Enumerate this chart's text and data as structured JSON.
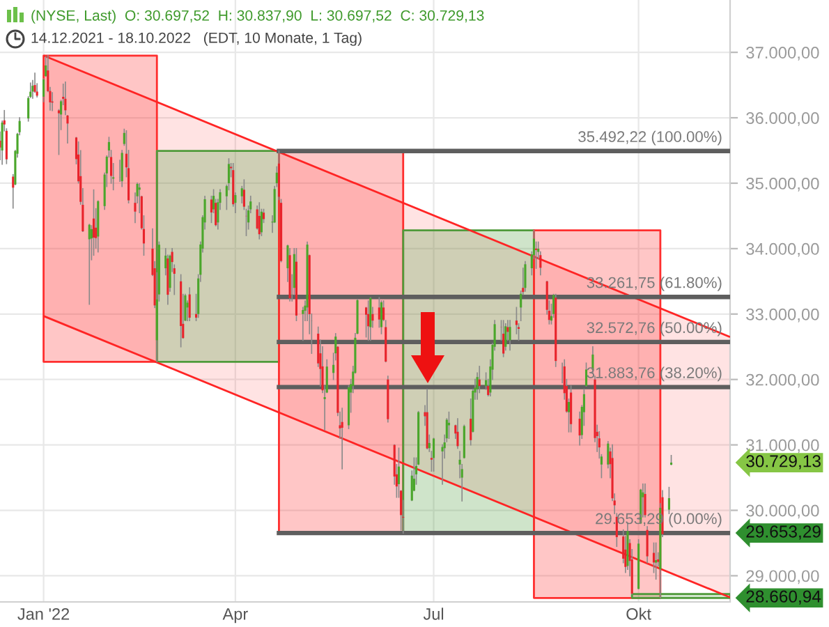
{
  "chart_data": {
    "type": "candlestick",
    "title": "(NYSE, Last)  O: 30.697,52  H: 30.837,90  L: 30.697,52  C: 30.729,13",
    "subtitle": "14.12.2021 - 18.10.2022   (EDT, 10 Monate, 1 Tag)",
    "x": [
      "2021-12-14",
      "2021-12-15",
      "2021-12-16",
      "2021-12-17",
      "2021-12-20",
      "2021-12-21",
      "2021-12-22",
      "2021-12-23",
      "2021-12-27",
      "2021-12-28",
      "2021-12-29",
      "2021-12-30",
      "2021-12-31",
      "2022-01-03",
      "2022-01-04",
      "2022-01-05",
      "2022-01-06",
      "2022-01-07",
      "2022-01-10",
      "2022-01-11",
      "2022-01-12",
      "2022-01-13",
      "2022-01-14",
      "2022-01-18",
      "2022-01-19",
      "2022-01-20",
      "2022-01-21",
      "2022-01-24",
      "2022-01-25",
      "2022-01-26",
      "2022-01-27",
      "2022-01-28",
      "2022-01-31",
      "2022-02-01",
      "2022-02-02",
      "2022-02-03",
      "2022-02-04",
      "2022-02-07",
      "2022-02-08",
      "2022-02-09",
      "2022-02-10",
      "2022-02-11",
      "2022-02-14",
      "2022-02-15",
      "2022-02-16",
      "2022-02-17",
      "2022-02-18",
      "2022-02-22",
      "2022-02-23",
      "2022-02-24",
      "2022-02-25",
      "2022-02-28",
      "2022-03-01",
      "2022-03-02",
      "2022-03-03",
      "2022-03-04",
      "2022-03-07",
      "2022-03-08",
      "2022-03-09",
      "2022-03-10",
      "2022-03-11",
      "2022-03-14",
      "2022-03-15",
      "2022-03-16",
      "2022-03-17",
      "2022-03-18",
      "2022-03-21",
      "2022-03-22",
      "2022-03-23",
      "2022-03-24",
      "2022-03-25",
      "2022-03-28",
      "2022-03-29",
      "2022-03-30",
      "2022-03-31",
      "2022-04-01",
      "2022-04-04",
      "2022-04-05",
      "2022-04-06",
      "2022-04-07",
      "2022-04-08",
      "2022-04-11",
      "2022-04-12",
      "2022-04-13",
      "2022-04-14",
      "2022-04-18",
      "2022-04-19",
      "2022-04-20",
      "2022-04-21",
      "2022-04-22",
      "2022-04-25",
      "2022-04-26",
      "2022-04-27",
      "2022-04-28",
      "2022-04-29",
      "2022-05-02",
      "2022-05-03",
      "2022-05-04",
      "2022-05-05",
      "2022-05-06",
      "2022-05-09",
      "2022-05-10",
      "2022-05-11",
      "2022-05-12",
      "2022-05-13",
      "2022-05-16",
      "2022-05-17",
      "2022-05-18",
      "2022-05-19",
      "2022-05-20",
      "2022-05-23",
      "2022-05-24",
      "2022-05-25",
      "2022-05-26",
      "2022-05-27",
      "2022-05-31",
      "2022-06-01",
      "2022-06-02",
      "2022-06-03",
      "2022-06-06",
      "2022-06-07",
      "2022-06-08",
      "2022-06-09",
      "2022-06-10",
      "2022-06-13",
      "2022-06-14",
      "2022-06-15",
      "2022-06-16",
      "2022-06-17",
      "2022-06-21",
      "2022-06-22",
      "2022-06-23",
      "2022-06-24",
      "2022-06-27",
      "2022-06-28",
      "2022-06-29",
      "2022-06-30",
      "2022-07-01",
      "2022-07-05",
      "2022-07-06",
      "2022-07-07",
      "2022-07-08",
      "2022-07-11",
      "2022-07-12",
      "2022-07-13",
      "2022-07-14",
      "2022-07-15",
      "2022-07-18",
      "2022-07-19",
      "2022-07-20",
      "2022-07-21",
      "2022-07-22",
      "2022-07-25",
      "2022-07-26",
      "2022-07-27",
      "2022-07-28",
      "2022-07-29",
      "2022-08-01",
      "2022-08-02",
      "2022-08-03",
      "2022-08-04",
      "2022-08-05",
      "2022-08-08",
      "2022-08-09",
      "2022-08-10",
      "2022-08-11",
      "2022-08-12",
      "2022-08-15",
      "2022-08-16",
      "2022-08-17",
      "2022-08-18",
      "2022-08-19",
      "2022-08-22",
      "2022-08-23",
      "2022-08-24",
      "2022-08-25",
      "2022-08-26",
      "2022-08-29",
      "2022-08-30",
      "2022-08-31",
      "2022-09-01",
      "2022-09-02",
      "2022-09-06",
      "2022-09-07",
      "2022-09-08",
      "2022-09-09",
      "2022-09-12",
      "2022-09-13",
      "2022-09-14",
      "2022-09-15",
      "2022-09-16",
      "2022-09-19",
      "2022-09-20",
      "2022-09-21",
      "2022-09-22",
      "2022-09-23",
      "2022-09-26",
      "2022-09-27",
      "2022-09-28",
      "2022-09-29",
      "2022-09-30",
      "2022-10-03",
      "2022-10-04",
      "2022-10-05",
      "2022-10-06",
      "2022-10-07",
      "2022-10-10",
      "2022-10-11",
      "2022-10-12",
      "2022-10-13",
      "2022-10-14",
      "2022-10-17",
      "2022-10-18"
    ],
    "ohlc": [
      [
        35650,
        35780,
        35360,
        35544
      ],
      [
        35500,
        35950,
        35290,
        35927
      ],
      [
        35960,
        36110,
        35800,
        35898
      ],
      [
        35800,
        35830,
        35300,
        35365
      ],
      [
        35100,
        35130,
        34620,
        34932
      ],
      [
        34980,
        35500,
        34980,
        35493
      ],
      [
        35450,
        35760,
        35400,
        35754
      ],
      [
        35780,
        36000,
        35740,
        35951
      ],
      [
        35990,
        36320,
        35950,
        36302
      ],
      [
        36320,
        36530,
        36310,
        36398
      ],
      [
        36400,
        36570,
        36300,
        36489
      ],
      [
        36500,
        36680,
        36390,
        36398
      ],
      [
        36400,
        36520,
        36320,
        36338
      ],
      [
        36322,
        36596,
        36246,
        36585
      ],
      [
        36636,
        36935,
        36636,
        36800
      ],
      [
        36723,
        36950,
        36400,
        36407
      ],
      [
        36409,
        36464,
        36118,
        36236
      ],
      [
        36249,
        36382,
        36111,
        36232
      ],
      [
        36113,
        36123,
        35440,
        36069
      ],
      [
        36050,
        36266,
        35820,
        36252
      ],
      [
        36320,
        36513,
        36201,
        36290
      ],
      [
        36290,
        36544,
        36048,
        36114
      ],
      [
        36034,
        36034,
        35616,
        35912
      ],
      [
        35698,
        35698,
        35297,
        35368
      ],
      [
        35438,
        35629,
        35004,
        35029
      ],
      [
        35108,
        35497,
        34680,
        34715
      ],
      [
        34669,
        34917,
        34264,
        34265
      ],
      [
        34143,
        34370,
        33150,
        34365
      ],
      [
        34155,
        34350,
        33830,
        34298
      ],
      [
        34460,
        34897,
        33900,
        34168
      ],
      [
        34320,
        34610,
        34009,
        34161
      ],
      [
        34185,
        34729,
        33950,
        34725
      ],
      [
        34650,
        35152,
        34600,
        35132
      ],
      [
        35150,
        35417,
        34950,
        35405
      ],
      [
        35500,
        35700,
        35400,
        35629
      ],
      [
        35400,
        35500,
        35000,
        35111
      ],
      [
        35070,
        35300,
        34900,
        35090
      ],
      [
        35090,
        35350,
        35030,
        35091
      ],
      [
        35030,
        35500,
        34950,
        35463
      ],
      [
        35600,
        35824,
        35580,
        35768
      ],
      [
        35450,
        35800,
        35100,
        35242
      ],
      [
        35230,
        35500,
        34700,
        34738
      ],
      [
        34700,
        34850,
        34400,
        34566
      ],
      [
        34800,
        35000,
        34700,
        34989
      ],
      [
        34900,
        34990,
        34550,
        34934
      ],
      [
        34800,
        34800,
        34300,
        34312
      ],
      [
        34300,
        34500,
        33900,
        34079
      ],
      [
        34000,
        34300,
        33590,
        33597
      ],
      [
        33700,
        33800,
        33100,
        33132
      ],
      [
        32600,
        33630,
        32270,
        33224
      ],
      [
        33300,
        34100,
        33200,
        34059
      ],
      [
        33700,
        34000,
        33600,
        33893
      ],
      [
        33850,
        33900,
        33150,
        33295
      ],
      [
        33400,
        33900,
        33350,
        33891
      ],
      [
        33950,
        34000,
        33650,
        33795
      ],
      [
        33700,
        33750,
        33300,
        33615
      ],
      [
        33500,
        33600,
        32500,
        32817
      ],
      [
        32850,
        33300,
        32632,
        32633
      ],
      [
        32900,
        33300,
        32900,
        33286
      ],
      [
        33100,
        33200,
        32900,
        33174
      ],
      [
        33300,
        33400,
        32900,
        32944
      ],
      [
        33000,
        33300,
        32900,
        32945
      ],
      [
        33000,
        33600,
        32950,
        33544
      ],
      [
        33600,
        34100,
        33500,
        34063
      ],
      [
        34000,
        34500,
        33950,
        34481
      ],
      [
        34400,
        34800,
        34300,
        34755
      ],
      [
        34750,
        34800,
        34400,
        34553
      ],
      [
        34600,
        34900,
        34550,
        34807
      ],
      [
        34700,
        34750,
        34350,
        34359
      ],
      [
        34400,
        34750,
        34300,
        34708
      ],
      [
        34700,
        34900,
        34600,
        34861
      ],
      [
        34800,
        34970,
        34600,
        34956
      ],
      [
        35000,
        35372,
        34900,
        35294
      ],
      [
        35250,
        35300,
        35100,
        35229
      ],
      [
        35200,
        35300,
        34650,
        34678
      ],
      [
        34700,
        34850,
        34550,
        34818
      ],
      [
        34800,
        34950,
        34700,
        34922
      ],
      [
        34900,
        35050,
        34600,
        34641
      ],
      [
        34500,
        34600,
        34200,
        34497
      ],
      [
        34400,
        34650,
        34300,
        34584
      ],
      [
        34600,
        34800,
        34550,
        34721
      ],
      [
        34600,
        34650,
        34300,
        34308
      ],
      [
        34500,
        34700,
        34150,
        34220
      ],
      [
        34250,
        34600,
        34200,
        34565
      ],
      [
        34550,
        34600,
        34400,
        34451
      ],
      [
        34400,
        34500,
        34250,
        34412
      ],
      [
        34400,
        34950,
        34400,
        34911
      ],
      [
        35000,
        35250,
        34950,
        35161
      ],
      [
        35300,
        35492.22,
        34750,
        34793
      ],
      [
        34700,
        34750,
        33800,
        33811
      ],
      [
        33700,
        34050,
        33500,
        34049
      ],
      [
        33900,
        34000,
        33200,
        33240
      ],
      [
        33300,
        33600,
        33200,
        33302
      ],
      [
        33400,
        34000,
        33300,
        33916
      ],
      [
        33800,
        34000,
        32900,
        32977
      ],
      [
        33000,
        33100,
        32600,
        33062
      ],
      [
        33050,
        33200,
        32900,
        33129
      ],
      [
        33100,
        34100,
        32900,
        34061
      ],
      [
        33900,
        33900,
        32700,
        32998
      ],
      [
        32900,
        33000,
        32400,
        32899
      ],
      [
        32700,
        32800,
        32200,
        32246
      ],
      [
        32400,
        32600,
        31900,
        32161
      ],
      [
        32200,
        32500,
        31800,
        31834
      ],
      [
        31700,
        31900,
        31230,
        31730
      ],
      [
        31800,
        32300,
        31800,
        32197
      ],
      [
        32100,
        32400,
        32000,
        32223
      ],
      [
        32400,
        32700,
        32300,
        32655
      ],
      [
        32500,
        32500,
        31450,
        31490
      ],
      [
        31300,
        31500,
        31100,
        31253
      ],
      [
        31350,
        31560,
        30636,
        31262
      ],
      [
        31300,
        31900,
        31250,
        31880
      ],
      [
        31800,
        32000,
        31500,
        31929
      ],
      [
        31900,
        32200,
        31800,
        32120
      ],
      [
        32100,
        32700,
        32100,
        32637
      ],
      [
        32700,
        33220,
        32700,
        33213
      ],
      [
        33100,
        33100,
        32650,
        32990
      ],
      [
        33000,
        33200,
        32600,
        32813
      ],
      [
        32800,
        33250,
        32600,
        33248
      ],
      [
        33000,
        33100,
        32800,
        32900
      ],
      [
        33100,
        33250,
        32800,
        32916
      ],
      [
        32800,
        33200,
        32700,
        33180
      ],
      [
        33100,
        33200,
        32900,
        32911
      ],
      [
        32800,
        32900,
        32270,
        32273
      ],
      [
        32000,
        32050,
        31350,
        31393
      ],
      [
        31000,
        31000,
        30400,
        30517
      ],
      [
        30550,
        30700,
        30200,
        30365
      ],
      [
        30400,
        30950,
        30200,
        30669
      ],
      [
        30300,
        30300,
        29700,
        29927
      ],
      [
        29900,
        30150,
        29653.29,
        29889
      ],
      [
        30150,
        30600,
        30150,
        30530
      ],
      [
        30300,
        30800,
        30300,
        30483
      ],
      [
        30550,
        30800,
        30400,
        30677
      ],
      [
        30700,
        31510,
        30700,
        31501
      ],
      [
        31500,
        31600,
        31300,
        31438
      ],
      [
        31500,
        31850,
        30940,
        30947
      ],
      [
        30950,
        31150,
        30900,
        31029
      ],
      [
        30800,
        30900,
        30600,
        30775
      ],
      [
        30800,
        31100,
        30600,
        31097
      ],
      [
        30900,
        31000,
        30400,
        30968
      ],
      [
        30950,
        31150,
        30800,
        31038
      ],
      [
        31100,
        31400,
        31050,
        31385
      ],
      [
        31300,
        31500,
        31100,
        31338
      ],
      [
        31300,
        31300,
        31100,
        31174
      ],
      [
        31200,
        31400,
        30950,
        30981
      ],
      [
        30700,
        30900,
        30500,
        30773
      ],
      [
        30500,
        30700,
        30144,
        30630
      ],
      [
        30800,
        31300,
        30800,
        31288
      ],
      [
        31400,
        31700,
        31000,
        31073
      ],
      [
        31200,
        31850,
        31200,
        31827
      ],
      [
        31800,
        32000,
        31700,
        31875
      ],
      [
        31850,
        32100,
        31700,
        32037
      ],
      [
        32000,
        32200,
        31800,
        31899
      ],
      [
        31900,
        32100,
        31850,
        31990
      ],
      [
        31900,
        32000,
        31750,
        31762
      ],
      [
        31800,
        32300,
        31750,
        32198
      ],
      [
        32150,
        32550,
        32000,
        32530
      ],
      [
        32500,
        32900,
        32450,
        32845
      ],
      [
        32800,
        32900,
        32600,
        32798
      ],
      [
        32700,
        32900,
        32350,
        32396
      ],
      [
        32500,
        32850,
        32450,
        32813
      ],
      [
        32800,
        32900,
        32600,
        32727
      ],
      [
        32600,
        32900,
        32450,
        32803
      ],
      [
        32900,
        33100,
        32700,
        32833
      ],
      [
        32800,
        32850,
        32600,
        32774
      ],
      [
        33100,
        33350,
        32900,
        33310
      ],
      [
        33400,
        33700,
        33300,
        33337
      ],
      [
        33400,
        33800,
        33350,
        33761
      ],
      [
        33700,
        33950,
        33600,
        33912
      ],
      [
        33900,
        34280,
        33850,
        34152
      ],
      [
        34000,
        34100,
        33700,
        33980
      ],
      [
        33950,
        34100,
        33850,
        33999
      ],
      [
        33900,
        33950,
        33600,
        33707
      ],
      [
        33500,
        33500,
        33000,
        33064
      ],
      [
        33050,
        33200,
        32850,
        32910
      ],
      [
        32900,
        33150,
        32850,
        32969
      ],
      [
        33000,
        33300,
        32950,
        33292
      ],
      [
        33250,
        33300,
        32200,
        32283
      ],
      [
        32100,
        32250,
        31950,
        32099
      ],
      [
        32200,
        32300,
        31700,
        31791
      ],
      [
        31900,
        32000,
        31500,
        31510
      ],
      [
        31500,
        31700,
        31200,
        31656
      ],
      [
        31800,
        31900,
        31200,
        31318
      ],
      [
        31400,
        31500,
        31000,
        31145
      ],
      [
        31150,
        31600,
        31100,
        31581
      ],
      [
        31500,
        31850,
        31300,
        31775
      ],
      [
        31900,
        32250,
        31900,
        32152
      ],
      [
        32150,
        32500,
        32100,
        32381
      ],
      [
        32000,
        32050,
        31050,
        31105
      ],
      [
        31200,
        31300,
        30900,
        31135
      ],
      [
        31100,
        31200,
        30800,
        30962
      ],
      [
        30700,
        30850,
        30500,
        30822
      ],
      [
        30700,
        31050,
        30650,
        31020
      ],
      [
        30900,
        30950,
        30500,
        30706
      ],
      [
        30800,
        31000,
        30150,
        30184
      ],
      [
        30150,
        30250,
        29950,
        30077
      ],
      [
        29900,
        29950,
        29450,
        29590
      ],
      [
        29600,
        29700,
        29200,
        29261
      ],
      [
        29400,
        29600,
        29050,
        29135
      ],
      [
        29150,
        29800,
        29100,
        29684
      ],
      [
        29500,
        29550,
        29000,
        29226
      ],
      [
        29250,
        29400,
        28720,
        28726
      ],
      [
        28800,
        29550,
        28800,
        29491
      ],
      [
        29800,
        30320,
        29800,
        30316
      ],
      [
        30200,
        30400,
        29900,
        30274
      ],
      [
        30250,
        30400,
        29900,
        29927
      ],
      [
        29700,
        29750,
        29200,
        29297
      ],
      [
        29350,
        29500,
        29050,
        29203
      ],
      [
        29200,
        29500,
        28950,
        29239
      ],
      [
        29250,
        29350,
        29150,
        29211
      ],
      [
        29100,
        30100,
        28660.94,
        30039
      ],
      [
        30200,
        30300,
        29600,
        29635
      ],
      [
        30010,
        30350,
        29950,
        30186
      ],
      [
        30697.52,
        30837.9,
        30697.52,
        30729.13
      ]
    ],
    "colors": [
      "#e8232b",
      "#4aa62b",
      "#e8232b",
      "#e8232b",
      "#e8232b",
      "#4aa62b",
      "#4aa62b",
      "#4aa62b",
      "#4aa62b",
      "#4aa62b",
      "#4aa62b",
      "#e8232b",
      "#e8232b",
      "#4aa62b",
      "#4aa62b",
      "#e8232b",
      "#e8232b",
      "#e8232b",
      "#e8232b",
      "#4aa62b",
      "#e8232b",
      "#e8232b",
      "#e8232b",
      "#e8232b",
      "#e8232b",
      "#e8232b",
      "#e8232b",
      "#4aa62b",
      "#4aa62b",
      "#e8232b",
      "#e8232b",
      "#4aa62b",
      "#4aa62b",
      "#4aa62b",
      "#4aa62b",
      "#e8232b",
      "#4aa62b",
      "#4aa62b",
      "#4aa62b",
      "#4aa62b",
      "#e8232b",
      "#e8232b",
      "#e8232b",
      "#4aa62b",
      "#4aa62b",
      "#e8232b",
      "#e8232b",
      "#e8232b",
      "#e8232b",
      "#4aa62b",
      "#4aa62b",
      "#4aa62b",
      "#e8232b",
      "#4aa62b",
      "#e8232b",
      "#e8232b",
      "#e8232b",
      "#e8232b",
      "#4aa62b",
      "#4aa62b",
      "#e8232b",
      "#e8232b",
      "#4aa62b",
      "#4aa62b",
      "#4aa62b",
      "#4aa62b",
      "#e8232b",
      "#4aa62b",
      "#e8232b",
      "#4aa62b",
      "#4aa62b",
      "#4aa62b",
      "#4aa62b",
      "#e8232b",
      "#e8232b",
      "#4aa62b",
      "#4aa62b",
      "#e8232b",
      "#e8232b",
      "#4aa62b",
      "#4aa62b",
      "#e8232b",
      "#e8232b",
      "#4aa62b",
      "#e8232b",
      "#4aa62b",
      "#4aa62b",
      "#4aa62b",
      "#e8232b",
      "#e8232b",
      "#4aa62b",
      "#e8232b",
      "#4aa62b",
      "#4aa62b",
      "#e8232b",
      "#4aa62b",
      "#4aa62b",
      "#4aa62b",
      "#e8232b",
      "#e8232b",
      "#e8232b",
      "#e8232b",
      "#e8232b",
      "#4aa62b",
      "#4aa62b",
      "#4aa62b",
      "#4aa62b",
      "#e8232b",
      "#e8232b",
      "#e8232b",
      "#4aa62b",
      "#4aa62b",
      "#4aa62b",
      "#4aa62b",
      "#4aa62b",
      "#e8232b",
      "#e8232b",
      "#4aa62b",
      "#e8232b",
      "#e8232b",
      "#4aa62b",
      "#e8232b",
      "#e8232b",
      "#e8232b",
      "#e8232b",
      "#e8232b",
      "#4aa62b",
      "#e8232b",
      "#e8232b",
      "#4aa62b",
      "#4aa62b",
      "#4aa62b",
      "#4aa62b",
      "#e8232b",
      "#e8232b",
      "#4aa62b",
      "#e8232b",
      "#4aa62b",
      "#4aa62b",
      "#4aa62b",
      "#4aa62b",
      "#4aa62b",
      "#e8232b",
      "#e8232b",
      "#4aa62b",
      "#4aa62b",
      "#4aa62b",
      "#e8232b",
      "#4aa62b",
      "#4aa62b",
      "#4aa62b",
      "#e8232b",
      "#4aa62b",
      "#e8232b",
      "#4aa62b",
      "#4aa62b",
      "#4aa62b",
      "#e8232b",
      "#e8232b",
      "#4aa62b",
      "#e8232b",
      "#4aa62b",
      "#e8232b",
      "#e8232b",
      "#4aa62b",
      "#e8232b",
      "#4aa62b",
      "#4aa62b",
      "#4aa62b",
      "#e8232b",
      "#4aa62b",
      "#e8232b",
      "#e8232b",
      "#e8232b",
      "#4aa62b",
      "#4aa62b",
      "#e8232b",
      "#e8232b",
      "#e8232b",
      "#e8232b",
      "#4aa62b",
      "#e8232b",
      "#e8232b",
      "#4aa62b",
      "#4aa62b",
      "#4aa62b",
      "#4aa62b",
      "#e8232b",
      "#e8232b",
      "#e8232b",
      "#4aa62b",
      "#4aa62b",
      "#e8232b",
      "#e8232b",
      "#e8232b",
      "#e8232b",
      "#e8232b",
      "#e8232b",
      "#4aa62b",
      "#e8232b",
      "#e8232b",
      "#4aa62b",
      "#4aa62b",
      "#4aa62b",
      "#e8232b",
      "#e8232b",
      "#e8232b",
      "#4aa62b",
      "#e8232b",
      "#4aa62b",
      "#e8232b",
      "#4aa62b",
      "#4aa62b"
    ],
    "series": [
      {
        "type": "line",
        "color": "#ff2424",
        "x": [
          "2022-01-03",
          "2022-11-14"
        ],
        "values": [
          36950,
          32650
        ],
        "lower": [
          32970,
          28670
        ],
        "upper": [
          36950,
          32650
        ]
      },
      {
        "type": "line",
        "color": "#ff2424",
        "x": [
          "2022-01-03",
          "2022-11-14"
        ],
        "values": [
          32970,
          28670
        ]
      },
      {
        "type": "area",
        "color": "#ff2e2e",
        "x": [
          "2022-01-03",
          "2022-02-24",
          "2022-02-24",
          "2022-01-03",
          "2022-01-03"
        ],
        "values": [
          36950,
          36950,
          32270,
          32270,
          36950
        ]
      },
      {
        "type": "area",
        "color": "#4f9a3a",
        "x": [
          "2022-02-24",
          "2022-04-21",
          "2022-04-21",
          "2022-02-24",
          "2022-02-24"
        ],
        "values": [
          35492.22,
          35492.22,
          32270,
          32270,
          35492.22
        ]
      },
      {
        "type": "area",
        "color": "#ff2e2e",
        "x": [
          "2022-04-21",
          "2022-06-17",
          "2022-06-17",
          "2022-04-21",
          "2022-04-21"
        ],
        "values": [
          35492.22,
          35492.22,
          29653.29,
          29653.29,
          35492.22
        ]
      },
      {
        "type": "area",
        "color": "#4f9a3a",
        "x": [
          "2022-06-17",
          "2022-08-16",
          "2022-08-16",
          "2022-06-17",
          "2022-06-17"
        ],
        "values": [
          34280,
          34280,
          29653.29,
          29653.29,
          34280
        ]
      },
      {
        "type": "area",
        "color": "#ff2e2e",
        "x": [
          "2022-08-16",
          "2022-10-13",
          "2022-10-13",
          "2022-08-16",
          "2022-08-16"
        ],
        "values": [
          34280,
          34280,
          28660.94,
          28660.94,
          34280
        ]
      },
      {
        "type": "area",
        "color": "#4f9a3a",
        "x": [
          "2022-09-30",
          "2022-11-14",
          "2022-11-14",
          "2022-09-30",
          "2022-09-30"
        ],
        "values": [
          28720,
          28720,
          28660.94,
          28660.94,
          28720
        ]
      },
      {
        "type": "line",
        "name": "35.492,22 (100.00%)",
        "color": "#5e5e5e",
        "x": [
          "2022-04-21",
          "2022-11-14"
        ],
        "values": [
          35492.22,
          35492.22
        ]
      },
      {
        "type": "line",
        "name": "33.261,75 (61.80%)",
        "color": "#5e5e5e",
        "x": [
          "2022-04-21",
          "2022-11-14"
        ],
        "values": [
          33261.75,
          33261.75
        ]
      },
      {
        "type": "line",
        "name": "32.572,76 (50.00%)",
        "color": "#5e5e5e",
        "x": [
          "2022-04-21",
          "2022-11-14"
        ],
        "values": [
          32572.76,
          32572.76
        ]
      },
      {
        "type": "line",
        "name": "31.883,76 (38.20%)",
        "color": "#5e5e5e",
        "x": [
          "2022-04-21",
          "2022-11-14"
        ],
        "values": [
          31883.76,
          31883.76
        ]
      },
      {
        "type": "line",
        "name": "29.653,29 (0.00%)",
        "color": "#5e5e5e",
        "x": [
          "2022-04-21",
          "2022-11-14"
        ],
        "values": [
          29653.29,
          29653.29
        ]
      }
    ],
    "annotations": [
      {
        "text": "30.729,13",
        "x": "2022-11-14",
        "y": 30729.13
      },
      {
        "text": "29.653,29",
        "x": "2022-11-14",
        "y": 29653.29
      },
      {
        "text": "28.660,94",
        "x": "2022-11-14",
        "y": 28660.94
      }
    ],
    "xlim": [
      "2021-12-14",
      "2022-11-14"
    ],
    "xticks": [
      {
        "value": "2022-01-03",
        "label": "Jan '22"
      },
      {
        "value": "2022-04-01",
        "label": "Apr"
      },
      {
        "value": "2022-07-01",
        "label": "Jul"
      },
      {
        "value": "2022-10-03",
        "label": "Okt"
      }
    ],
    "ylim": [
      28600,
      37800
    ],
    "yticks": [
      {
        "value": 29000,
        "label": "29.000,00"
      },
      {
        "value": 30000,
        "label": "30.000,00"
      },
      {
        "value": 31000,
        "label": "31.000,00"
      },
      {
        "value": 32000,
        "label": "32.000,00"
      },
      {
        "value": 33000,
        "label": "33.000,00"
      },
      {
        "value": 34000,
        "label": "34.000,00"
      },
      {
        "value": 35000,
        "label": "35.000,00"
      },
      {
        "value": 36000,
        "label": "36.000,00"
      },
      {
        "value": 37000,
        "label": "37.000,00"
      }
    ],
    "grid": true
  }
}
